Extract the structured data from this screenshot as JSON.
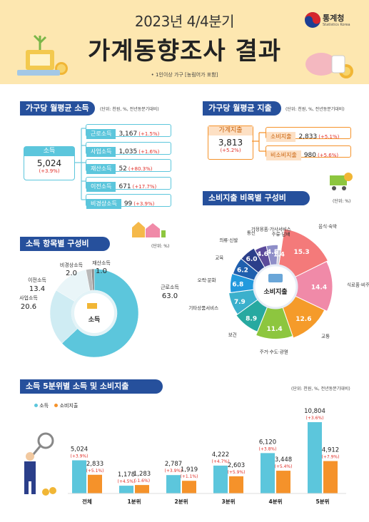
{
  "header": {
    "year_title": "2023년 4/4분기",
    "main_title": "가계동향조사 결과",
    "note": "• 1인이상 가구 [농림어가 포함]",
    "brand_name": "통계청",
    "brand_sub": "Statistics Korea"
  },
  "income_section": {
    "title": "가구당 월평균 소득",
    "unit": "(단위: 천원, %, 전년동분기대비)",
    "total": {
      "label": "소득",
      "value": "5,024",
      "pct": "(+3.9%)"
    },
    "items": [
      {
        "label": "근로소득",
        "value": "3,167",
        "pct": "(+1.5%)"
      },
      {
        "label": "사업소득",
        "value": "1,035",
        "pct": "(+1.6%)"
      },
      {
        "label": "재산소득",
        "value": "52",
        "pct": "(+80.3%)"
      },
      {
        "label": "이전소득",
        "value": "671",
        "pct": "(+17.7%)"
      },
      {
        "label": "비경상소득",
        "value": "99",
        "pct": "(+3.9%)"
      }
    ]
  },
  "spend_section": {
    "title": "가구당 월평균 지출",
    "unit": "(단위: 천원, %, 전년동분기대비)",
    "total": {
      "label": "가계지출",
      "value": "3,813",
      "pct": "(+5.2%)"
    },
    "items": [
      {
        "label": "소비지출",
        "value": "2,833",
        "pct": "(+5.1%)"
      },
      {
        "label": "비소비지출",
        "value": "980",
        "pct": "(+5.6%)"
      }
    ]
  },
  "income_comp": {
    "title": "소득 항목별 구성비",
    "unit": "(단위: %)",
    "center": "소득"
  },
  "spend_comp": {
    "title": "소비지출 비목별 구성비",
    "unit": "(단위: %)",
    "center": "소비지출"
  },
  "quintile": {
    "title": "소득 5분위별 소득 및 소비지출",
    "unit": "(단위: 천원, %, 전년동분기대비)",
    "legend_income": "소득",
    "legend_spend": "소비지출"
  },
  "chart_data": [
    {
      "type": "pie",
      "title": "소득 항목별 구성비",
      "categories": [
        "근로소득",
        "사업소득",
        "이전소득",
        "비경상소득",
        "재산소득"
      ],
      "values": [
        63.0,
        20.6,
        13.4,
        2.0,
        1.0
      ],
      "value_labels": [
        "63.0",
        "20.6",
        "13.4",
        "2.0",
        "1.0"
      ],
      "colors": [
        "#5cc6dc",
        "#cfecf3",
        "#e9f5f8",
        "#b9b9b9",
        "#8a8a8a"
      ]
    },
    {
      "type": "pie",
      "title": "소비지출 비목별 구성비",
      "categories": [
        "음식·숙박",
        "식료품·비주류음료",
        "교통",
        "주거·수도·광열",
        "보건",
        "기타상품서비스",
        "오락·문화",
        "교육",
        "의류·신발",
        "통신",
        "가정용품·가사서비스",
        "주류·담배"
      ],
      "values": [
        15.3,
        14.4,
        12.6,
        11.4,
        8.9,
        7.9,
        6.8,
        6.2,
        6.0,
        4.6,
        4.5,
        1.4
      ],
      "value_labels": [
        "15.3",
        "14.4",
        "12.6",
        "11.4",
        "8.9",
        "7.9",
        "6.8",
        "6.2",
        "6.0",
        "4.6",
        "4.5",
        "1.4"
      ],
      "colors": [
        "#f47a7a",
        "#f08aa8",
        "#f59b2a",
        "#8dc63f",
        "#27a9a0",
        "#3bb0cc",
        "#2299dd",
        "#1f5fae",
        "#2b3f8a",
        "#5b4a9a",
        "#8e8ec8",
        "#c8c8d8"
      ]
    },
    {
      "type": "bar",
      "title": "소득 5분위별 소득 및 소비지출",
      "categories": [
        "전체",
        "1분위",
        "2분위",
        "3분위",
        "4분위",
        "5분위"
      ],
      "series": [
        {
          "name": "소득",
          "values": [
            5024,
            1178,
            2787,
            4222,
            6120,
            10804
          ],
          "labels": [
            "5,024",
            "1,178",
            "2,787",
            "4,222",
            "6,120",
            "10,804"
          ],
          "pct": [
            "(+3.9%)",
            "(+4.5%)",
            "(+3.9%)",
            "(+4.7%)",
            "(+3.8%)",
            "(+3.6%)"
          ],
          "color": "#5cc6dc"
        },
        {
          "name": "소비지출",
          "values": [
            2833,
            1283,
            1919,
            2603,
            3448,
            4912
          ],
          "labels": [
            "2,833",
            "1,283",
            "1,919",
            "2,603",
            "3,448",
            "4,912"
          ],
          "pct": [
            "(+5.1%)",
            "(-1.6%)",
            "(+1.1%)",
            "(+5.9%)",
            "(+5.4%)",
            "(+7.9%)"
          ],
          "color": "#f5922a"
        }
      ]
    }
  ]
}
